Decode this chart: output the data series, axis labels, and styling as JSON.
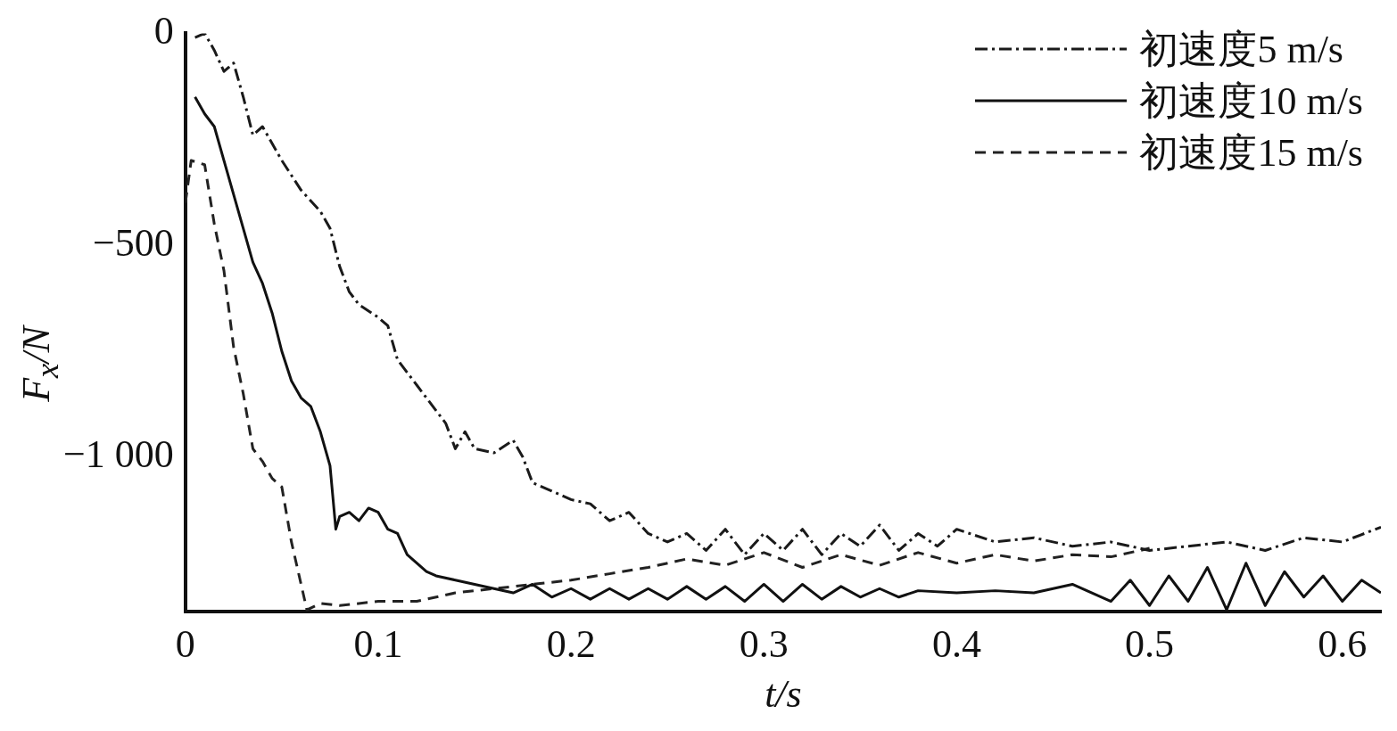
{
  "chart_data": {
    "type": "line",
    "xlabel": "t/s",
    "ylabel": "F$_{x}$/N",
    "xlim": [
      0,
      0.62
    ],
    "ylim": [
      -1365,
      0
    ],
    "xticks": [
      0,
      0.1,
      0.2,
      0.3,
      0.4,
      0.5,
      0.6
    ],
    "yticks": [
      0,
      {
        "value": -500,
        "label": "−500"
      },
      {
        "value": -1000,
        "label": "−1 000"
      }
    ],
    "grid": false,
    "legend": "top right",
    "marker": "none",
    "series": [
      {
        "name": "初速度5 m/s",
        "color": "#1a1a1a",
        "line_style": "dashdot",
        "x": [
          0.005,
          0.01,
          0.015,
          0.02,
          0.025,
          0.03,
          0.035,
          0.04,
          0.05,
          0.06,
          0.07,
          0.075,
          0.08,
          0.085,
          0.09,
          0.1,
          0.105,
          0.11,
          0.12,
          0.13,
          0.135,
          0.14,
          0.145,
          0.15,
          0.16,
          0.17,
          0.175,
          0.18,
          0.19,
          0.2,
          0.21,
          0.22,
          0.23,
          0.24,
          0.25,
          0.26,
          0.27,
          0.28,
          0.29,
          0.3,
          0.31,
          0.32,
          0.33,
          0.34,
          0.35,
          0.36,
          0.37,
          0.38,
          0.39,
          0.4,
          0.42,
          0.44,
          0.46,
          0.48,
          0.5,
          0.52,
          0.54,
          0.56,
          0.58,
          0.6,
          0.62
        ],
        "values": [
          -10,
          0,
          -40,
          -90,
          -70,
          -150,
          -240,
          -220,
          -300,
          -370,
          -420,
          -460,
          -550,
          -610,
          -640,
          -670,
          -690,
          -770,
          -830,
          -890,
          -920,
          -980,
          -940,
          -980,
          -990,
          -960,
          -1000,
          -1060,
          -1080,
          -1100,
          -1110,
          -1150,
          -1130,
          -1180,
          -1200,
          -1180,
          -1220,
          -1170,
          -1230,
          -1180,
          -1220,
          -1170,
          -1230,
          -1180,
          -1210,
          -1160,
          -1220,
          -1180,
          -1210,
          -1170,
          -1200,
          -1190,
          -1210,
          -1200,
          -1220,
          -1210,
          -1200,
          -1220,
          -1190,
          -1200,
          -1165
        ]
      },
      {
        "name": "初速度10 m/s",
        "color": "#111111",
        "line_style": "solid",
        "x": [
          0.005,
          0.01,
          0.015,
          0.02,
          0.025,
          0.03,
          0.035,
          0.04,
          0.045,
          0.05,
          0.055,
          0.06,
          0.065,
          0.07,
          0.075,
          0.078,
          0.08,
          0.085,
          0.09,
          0.095,
          0.1,
          0.105,
          0.11,
          0.115,
          0.12,
          0.125,
          0.13,
          0.14,
          0.15,
          0.16,
          0.17,
          0.18,
          0.19,
          0.2,
          0.21,
          0.22,
          0.23,
          0.24,
          0.25,
          0.26,
          0.27,
          0.28,
          0.29,
          0.3,
          0.31,
          0.32,
          0.33,
          0.34,
          0.35,
          0.36,
          0.37,
          0.38,
          0.4,
          0.42,
          0.44,
          0.46,
          0.48,
          0.49,
          0.5,
          0.51,
          0.52,
          0.53,
          0.54,
          0.55,
          0.56,
          0.57,
          0.58,
          0.59,
          0.6,
          0.61,
          0.62
        ],
        "values": [
          -150,
          -190,
          -220,
          -300,
          -380,
          -460,
          -540,
          -590,
          -660,
          -750,
          -820,
          -860,
          -880,
          -940,
          -1020,
          -1170,
          -1140,
          -1130,
          -1150,
          -1120,
          -1130,
          -1170,
          -1180,
          -1230,
          -1250,
          -1270,
          -1280,
          -1290,
          -1300,
          -1310,
          -1320,
          -1300,
          -1330,
          -1310,
          -1335,
          -1310,
          -1335,
          -1310,
          -1335,
          -1305,
          -1335,
          -1305,
          -1340,
          -1300,
          -1340,
          -1300,
          -1335,
          -1305,
          -1330,
          -1310,
          -1330,
          -1315,
          -1320,
          -1315,
          -1320,
          -1300,
          -1340,
          -1290,
          -1350,
          -1280,
          -1340,
          -1260,
          -1360,
          -1250,
          -1350,
          -1270,
          -1330,
          -1280,
          -1340,
          -1290,
          -1320
        ]
      },
      {
        "name": "初速度15 m/s",
        "color": "#222222",
        "line_style": "dashed",
        "x": [
          0,
          0.003,
          0.01,
          0.015,
          0.02,
          0.025,
          0.03,
          0.035,
          0.04,
          0.045,
          0.05,
          0.055,
          0.06,
          0.063,
          0.07,
          0.08,
          0.1,
          0.12,
          0.14,
          0.16,
          0.18,
          0.2,
          0.22,
          0.24,
          0.26,
          0.28,
          0.3,
          0.32,
          0.34,
          0.36,
          0.38,
          0.4,
          0.42,
          0.44,
          0.46,
          0.48,
          0.5
        ],
        "values": [
          -400,
          -300,
          -310,
          -450,
          -560,
          -740,
          -850,
          -980,
          -1010,
          -1050,
          -1070,
          -1200,
          -1300,
          -1360,
          -1345,
          -1350,
          -1340,
          -1340,
          -1320,
          -1310,
          -1300,
          -1290,
          -1275,
          -1260,
          -1240,
          -1255,
          -1225,
          -1260,
          -1230,
          -1255,
          -1225,
          -1250,
          -1230,
          -1245,
          -1230,
          -1235,
          -1215
        ]
      }
    ]
  }
}
